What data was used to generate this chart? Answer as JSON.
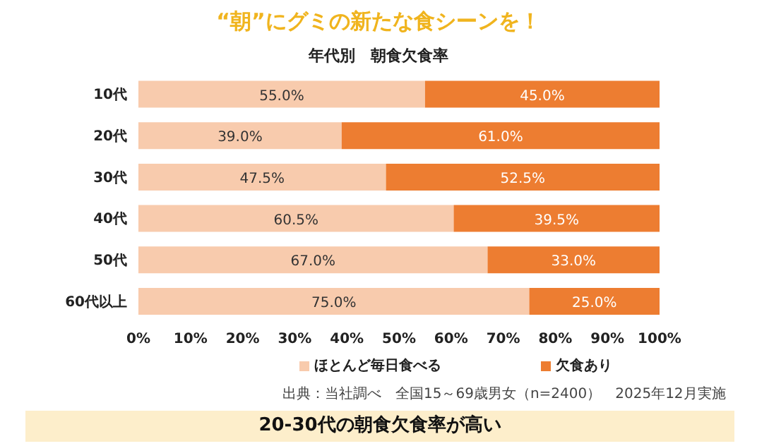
{
  "chart_data": {
    "type": "bar",
    "orientation": "horizontal",
    "stacked": true,
    "title": "“朝”にグミの新たな食シーンを！",
    "subtitle": "年代別　朝食欠食率",
    "categories": [
      "10代",
      "20代",
      "30代",
      "40代",
      "50代",
      "60代以上"
    ],
    "series": [
      {
        "name": "ほとんど毎日食べる",
        "color": "#f8cbad",
        "values": [
          55.0,
          39.0,
          47.5,
          60.5,
          67.0,
          75.0
        ],
        "value_labels": [
          "55.0%",
          "39.0%",
          "47.5%",
          "60.5%",
          "67.0%",
          "75.0%"
        ]
      },
      {
        "name": "欠食あり",
        "color": "#ed7d31",
        "values": [
          45.0,
          61.0,
          52.5,
          39.5,
          33.0,
          25.0
        ],
        "value_labels": [
          "45.0%",
          "61.0%",
          "52.5%",
          "39.5%",
          "33.0%",
          "25.0%"
        ]
      }
    ],
    "xlim": [
      0,
      100
    ],
    "xticks": [
      {
        "value": 0,
        "label": "0%"
      },
      {
        "value": 10,
        "label": "10%"
      },
      {
        "value": 20,
        "label": "20%"
      },
      {
        "value": 30,
        "label": "30%"
      },
      {
        "value": 40,
        "label": "40%"
      },
      {
        "value": 50,
        "label": "50%"
      },
      {
        "value": 60,
        "label": "60%"
      },
      {
        "value": 70,
        "label": "70%"
      },
      {
        "value": 80,
        "label": "80%"
      },
      {
        "value": 90,
        "label": "90%"
      },
      {
        "value": 100,
        "label": "100%"
      }
    ],
    "legend": "bottom",
    "annotations": [
      "出典：当社調べ　全国15～69歳男女（n=2400）　2025年12月実施",
      "20-30代の朝食欠食率が高い"
    ]
  }
}
